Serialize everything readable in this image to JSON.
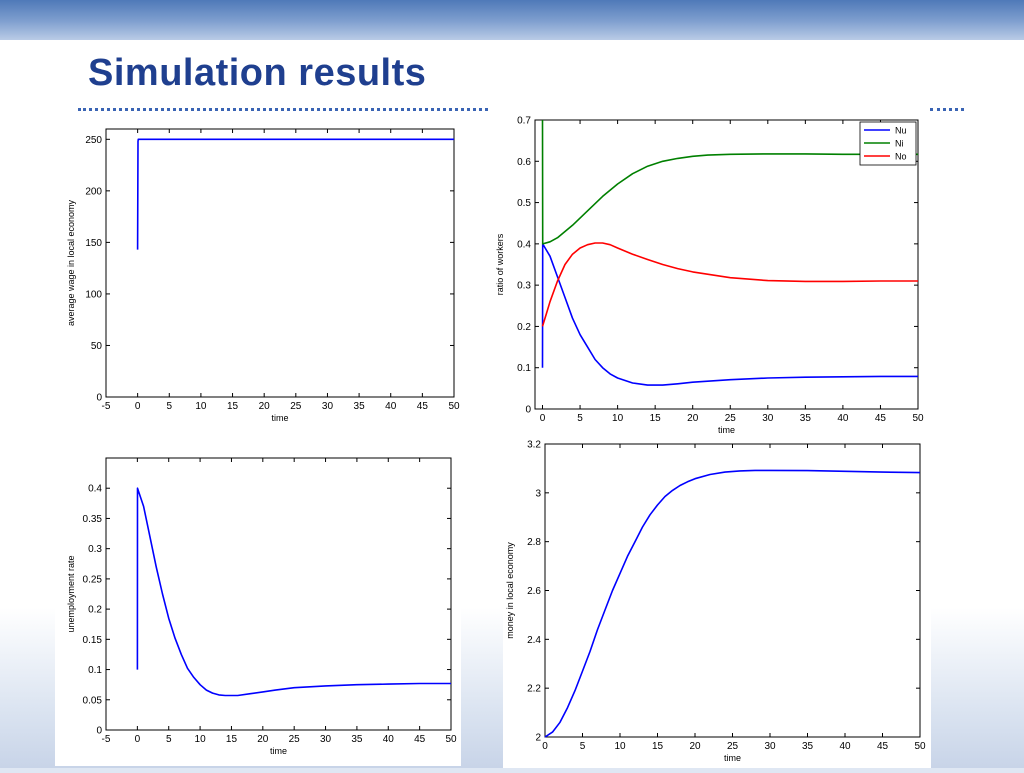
{
  "slide": {
    "title": "Simulation results"
  },
  "colors": {
    "blue": "#0000ff",
    "green": "#008000",
    "red": "#ff0000",
    "title": "#1f3f8f"
  },
  "chart_data": [
    {
      "id": "wage",
      "type": "line",
      "title": "",
      "xlabel": "time",
      "ylabel": "average wage in local economy",
      "xlim": [
        -5,
        50
      ],
      "ylim": [
        0,
        260
      ],
      "xticks": [
        -5,
        0,
        5,
        10,
        15,
        20,
        25,
        30,
        35,
        40,
        45,
        50
      ],
      "yticks": [
        0,
        50,
        100,
        150,
        200,
        250
      ],
      "series": [
        {
          "color": "#0000ff",
          "x": [
            0,
            0.05,
            0.1,
            1,
            50
          ],
          "y": [
            143,
            248,
            250,
            250,
            250
          ]
        }
      ]
    },
    {
      "id": "workers",
      "type": "line",
      "title": "",
      "xlabel": "time",
      "ylabel": "ratio of workers",
      "xlim": [
        -1,
        50
      ],
      "ylim": [
        0,
        0.7
      ],
      "xticks": [
        0,
        5,
        10,
        15,
        20,
        25,
        30,
        35,
        40,
        45,
        50
      ],
      "yticks": [
        0,
        0.1,
        0.2,
        0.3,
        0.4,
        0.5,
        0.6,
        0.7
      ],
      "legend": "top-right",
      "series": [
        {
          "name": "Nu",
          "color": "#0000ff",
          "x": [
            0,
            0.02,
            1,
            2,
            3,
            4,
            5,
            6,
            7,
            8,
            9,
            10,
            12,
            14,
            16,
            18,
            20,
            25,
            30,
            35,
            40,
            45,
            50
          ],
          "y": [
            0.1,
            0.4,
            0.37,
            0.32,
            0.27,
            0.22,
            0.18,
            0.15,
            0.12,
            0.1,
            0.085,
            0.075,
            0.063,
            0.058,
            0.058,
            0.061,
            0.065,
            0.071,
            0.075,
            0.077,
            0.078,
            0.079,
            0.079
          ]
        },
        {
          "name": "Ni",
          "color": "#008000",
          "x": [
            0,
            0.02,
            1,
            2,
            4,
            6,
            8,
            10,
            12,
            14,
            16,
            18,
            20,
            22,
            25,
            30,
            35,
            40,
            45,
            50
          ],
          "y": [
            0.7,
            0.4,
            0.405,
            0.415,
            0.445,
            0.48,
            0.515,
            0.545,
            0.57,
            0.588,
            0.6,
            0.607,
            0.612,
            0.615,
            0.617,
            0.618,
            0.618,
            0.617,
            0.617,
            0.617
          ]
        },
        {
          "name": "No",
          "color": "#ff0000",
          "x": [
            0,
            0.5,
            1,
            2,
            3,
            4,
            5,
            6,
            7,
            8,
            9,
            10,
            12,
            14,
            16,
            18,
            20,
            25,
            30,
            35,
            40,
            45,
            50
          ],
          "y": [
            0.2,
            0.23,
            0.26,
            0.31,
            0.35,
            0.375,
            0.39,
            0.398,
            0.402,
            0.402,
            0.398,
            0.39,
            0.375,
            0.362,
            0.35,
            0.34,
            0.332,
            0.318,
            0.311,
            0.309,
            0.309,
            0.31,
            0.31
          ]
        }
      ]
    },
    {
      "id": "unemployment",
      "type": "line",
      "title": "",
      "xlabel": "time",
      "ylabel": "unemployment rate",
      "xlim": [
        -5,
        50
      ],
      "ylim": [
        0,
        0.45
      ],
      "xticks": [
        -5,
        0,
        5,
        10,
        15,
        20,
        25,
        30,
        35,
        40,
        45,
        50
      ],
      "yticks": [
        0,
        0.05,
        0.1,
        0.15,
        0.2,
        0.25,
        0.3,
        0.35,
        0.4
      ],
      "series": [
        {
          "color": "#0000ff",
          "x": [
            0,
            0.02,
            1,
            2,
            3,
            4,
            5,
            6,
            7,
            8,
            9,
            10,
            11,
            12,
            13,
            14,
            15,
            16,
            18,
            20,
            22,
            25,
            30,
            35,
            40,
            45,
            50
          ],
          "y": [
            0.1,
            0.4,
            0.37,
            0.32,
            0.27,
            0.225,
            0.185,
            0.152,
            0.125,
            0.102,
            0.087,
            0.075,
            0.066,
            0.061,
            0.058,
            0.057,
            0.057,
            0.057,
            0.06,
            0.063,
            0.066,
            0.07,
            0.073,
            0.075,
            0.076,
            0.077,
            0.077
          ]
        }
      ]
    },
    {
      "id": "money",
      "type": "line",
      "title": "",
      "xlabel": "time",
      "ylabel": "money in local economy",
      "xlim": [
        0,
        50
      ],
      "ylim": [
        2,
        3.2
      ],
      "xticks": [
        0,
        5,
        10,
        15,
        20,
        25,
        30,
        35,
        40,
        45,
        50
      ],
      "yticks": [
        2,
        2.2,
        2.4,
        2.6,
        2.8,
        3,
        3.2
      ],
      "series": [
        {
          "color": "#0000ff",
          "x": [
            0,
            1,
            2,
            3,
            4,
            5,
            6,
            7,
            8,
            9,
            10,
            11,
            12,
            13,
            14,
            15,
            16,
            17,
            18,
            19,
            20,
            22,
            24,
            26,
            28,
            30,
            35,
            40,
            45,
            50
          ],
          "y": [
            2.0,
            2.02,
            2.06,
            2.12,
            2.19,
            2.27,
            2.35,
            2.44,
            2.52,
            2.6,
            2.67,
            2.74,
            2.8,
            2.86,
            2.91,
            2.95,
            2.985,
            3.01,
            3.03,
            3.045,
            3.058,
            3.075,
            3.085,
            3.09,
            3.092,
            3.092,
            3.091,
            3.088,
            3.085,
            3.083
          ]
        }
      ]
    }
  ]
}
